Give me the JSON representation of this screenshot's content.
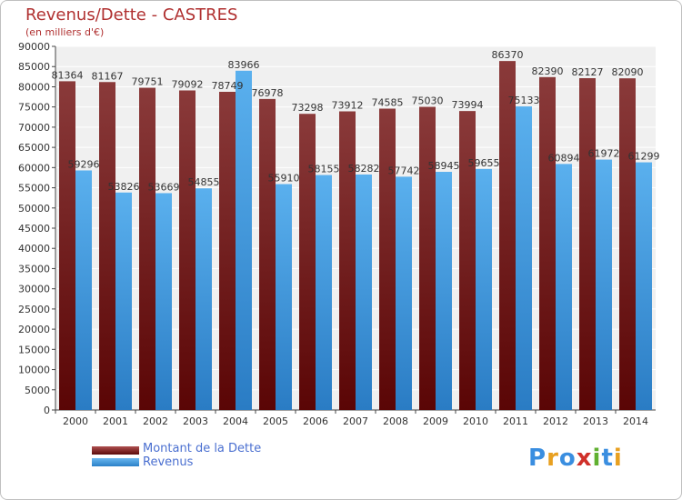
{
  "header": {
    "title": "Revenus/Dette - CASTRES",
    "subtitle": "(en milliers d'€)"
  },
  "legend": {
    "debt_label": "Montant de la Dette",
    "revenue_label": "Revenus"
  },
  "logo": {
    "text": "Proxiti",
    "letters": [
      "P",
      "r",
      "o",
      "x",
      "i",
      "t",
      "i"
    ]
  },
  "colors": {
    "title": "#b03030",
    "debt_bar": "#7a1a1a",
    "revenue_bar": "#3a9ae0",
    "plot_background": "#f0f0f0",
    "grid": "#ffffff",
    "legend_text": "#4a6fd0"
  },
  "chart_data": {
    "type": "bar",
    "categories": [
      "2000",
      "2001",
      "2002",
      "2003",
      "2004",
      "2005",
      "2006",
      "2007",
      "2008",
      "2009",
      "2010",
      "2011",
      "2012",
      "2013",
      "2014"
    ],
    "series": [
      {
        "name": "Montant de la Dette",
        "values": [
          81364,
          81167,
          79751,
          79092,
          78749,
          76978,
          73298,
          73912,
          74585,
          75030,
          73994,
          86370,
          82390,
          82127,
          82090
        ]
      },
      {
        "name": "Revenus",
        "values": [
          59296,
          53826,
          53669,
          54855,
          83966,
          55910,
          58155,
          58282,
          57742,
          58945,
          59655,
          75133,
          60894,
          61972,
          61299
        ]
      }
    ],
    "ylim": [
      0,
      90000
    ],
    "ytick_step": 5000,
    "grid": true,
    "legend_position": "bottom-left"
  }
}
